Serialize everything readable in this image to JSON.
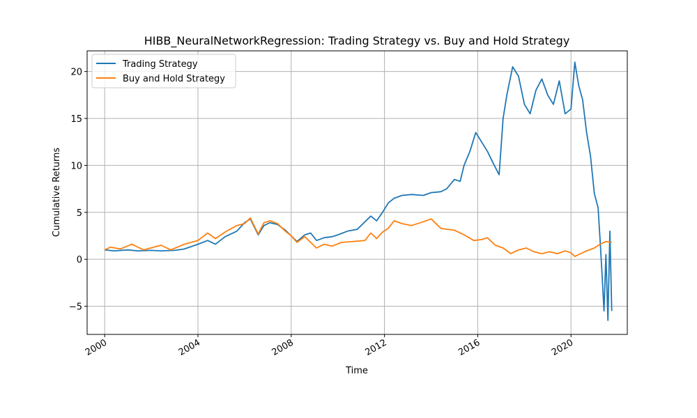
{
  "chart_data": {
    "type": "line",
    "title": "HIBB_NeuralNetworkRegression: Trading Strategy vs. Buy and Hold Strategy",
    "xlabel": "Time",
    "ylabel": "Cumulative Returns",
    "x_ticks": [
      "2000",
      "2004",
      "2008",
      "2012",
      "2016",
      "2020"
    ],
    "y_ticks": [
      "−5",
      "0",
      "5",
      "10",
      "15",
      "20"
    ],
    "xlim": [
      "1999-04-01",
      "2022-06-01"
    ],
    "ylim": [
      -8,
      22.2
    ],
    "grid": true,
    "legend": "top-left",
    "series": [
      {
        "name": "Trading Strategy",
        "color": "#1f77b4",
        "points": [
          [
            "2000-01-01",
            1.0
          ],
          [
            "2000-06-01",
            0.9
          ],
          [
            "2001-01-01",
            1.0
          ],
          [
            "2001-06-01",
            0.9
          ],
          [
            "2002-01-01",
            0.95
          ],
          [
            "2002-06-01",
            0.9
          ],
          [
            "2003-01-01",
            0.95
          ],
          [
            "2003-06-01",
            1.1
          ],
          [
            "2004-01-01",
            1.6
          ],
          [
            "2004-06-01",
            2.0
          ],
          [
            "2004-10-01",
            1.6
          ],
          [
            "2005-03-01",
            2.4
          ],
          [
            "2005-09-01",
            3.0
          ],
          [
            "2006-01-01",
            3.9
          ],
          [
            "2006-04-01",
            4.3
          ],
          [
            "2006-08-01",
            2.6
          ],
          [
            "2006-11-01",
            3.6
          ],
          [
            "2007-02-01",
            3.9
          ],
          [
            "2007-06-01",
            3.7
          ],
          [
            "2007-10-01",
            3.1
          ],
          [
            "2008-01-01",
            2.5
          ],
          [
            "2008-04-01",
            1.9
          ],
          [
            "2008-08-01",
            2.6
          ],
          [
            "2008-11-01",
            2.8
          ],
          [
            "2009-02-01",
            2.0
          ],
          [
            "2009-06-01",
            2.3
          ],
          [
            "2009-10-01",
            2.4
          ],
          [
            "2010-01-01",
            2.6
          ],
          [
            "2010-06-01",
            3.0
          ],
          [
            "2010-11-01",
            3.2
          ],
          [
            "2011-03-01",
            4.0
          ],
          [
            "2011-06-01",
            4.6
          ],
          [
            "2011-09-01",
            4.1
          ],
          [
            "2011-12-01",
            5.0
          ],
          [
            "2012-03-01",
            6.0
          ],
          [
            "2012-06-01",
            6.5
          ],
          [
            "2012-10-01",
            6.8
          ],
          [
            "2013-03-01",
            6.9
          ],
          [
            "2013-09-01",
            6.8
          ],
          [
            "2014-01-01",
            7.1
          ],
          [
            "2014-06-01",
            7.2
          ],
          [
            "2014-09-01",
            7.5
          ],
          [
            "2015-01-01",
            8.5
          ],
          [
            "2015-04-01",
            8.3
          ],
          [
            "2015-06-01",
            10.0
          ],
          [
            "2015-09-01",
            11.5
          ],
          [
            "2015-12-01",
            13.5
          ],
          [
            "2016-03-01",
            12.5
          ],
          [
            "2016-06-01",
            11.5
          ],
          [
            "2016-09-01",
            10.2
          ],
          [
            "2016-12-01",
            9.0
          ],
          [
            "2017-02-01",
            15.0
          ],
          [
            "2017-04-01",
            17.5
          ],
          [
            "2017-07-01",
            20.5
          ],
          [
            "2017-10-01",
            19.5
          ],
          [
            "2018-01-01",
            16.5
          ],
          [
            "2018-04-01",
            15.5
          ],
          [
            "2018-07-01",
            18.0
          ],
          [
            "2018-10-01",
            19.2
          ],
          [
            "2019-01-01",
            17.5
          ],
          [
            "2019-04-01",
            16.5
          ],
          [
            "2019-07-01",
            19.0
          ],
          [
            "2019-10-01",
            15.5
          ],
          [
            "2020-01-01",
            16.0
          ],
          [
            "2020-03-01",
            21.0
          ],
          [
            "2020-05-01",
            18.5
          ],
          [
            "2020-07-01",
            17.0
          ],
          [
            "2020-09-01",
            13.5
          ],
          [
            "2020-11-01",
            11.0
          ],
          [
            "2021-01-01",
            7.0
          ],
          [
            "2021-03-01",
            5.5
          ],
          [
            "2021-04-01",
            2.0
          ],
          [
            "2021-05-01",
            -1.5
          ],
          [
            "2021-06-01",
            -5.5
          ],
          [
            "2021-07-01",
            0.5
          ],
          [
            "2021-08-01",
            -6.5
          ],
          [
            "2021-09-01",
            3.0
          ],
          [
            "2021-10-01",
            -5.5
          ]
        ]
      },
      {
        "name": "Buy and Hold Strategy",
        "color": "#ff7f0e",
        "points": [
          [
            "2000-01-01",
            1.0
          ],
          [
            "2000-04-01",
            1.3
          ],
          [
            "2000-09-01",
            1.1
          ],
          [
            "2001-03-01",
            1.6
          ],
          [
            "2001-09-01",
            1.0
          ],
          [
            "2002-06-01",
            1.5
          ],
          [
            "2002-11-01",
            1.0
          ],
          [
            "2003-06-01",
            1.6
          ],
          [
            "2004-01-01",
            2.0
          ],
          [
            "2004-06-01",
            2.8
          ],
          [
            "2004-10-01",
            2.2
          ],
          [
            "2005-03-01",
            2.9
          ],
          [
            "2005-09-01",
            3.6
          ],
          [
            "2006-01-01",
            3.8
          ],
          [
            "2006-04-01",
            4.4
          ],
          [
            "2006-08-01",
            2.7
          ],
          [
            "2006-11-01",
            3.9
          ],
          [
            "2007-02-01",
            4.1
          ],
          [
            "2007-06-01",
            3.8
          ],
          [
            "2007-10-01",
            3.0
          ],
          [
            "2008-01-01",
            2.5
          ],
          [
            "2008-04-01",
            1.8
          ],
          [
            "2008-08-01",
            2.4
          ],
          [
            "2008-11-01",
            1.8
          ],
          [
            "2009-02-01",
            1.2
          ],
          [
            "2009-06-01",
            1.6
          ],
          [
            "2009-10-01",
            1.4
          ],
          [
            "2010-03-01",
            1.8
          ],
          [
            "2010-09-01",
            1.9
          ],
          [
            "2011-03-01",
            2.0
          ],
          [
            "2011-06-01",
            2.8
          ],
          [
            "2011-09-01",
            2.2
          ],
          [
            "2011-12-01",
            2.9
          ],
          [
            "2012-03-01",
            3.3
          ],
          [
            "2012-06-01",
            4.1
          ],
          [
            "2012-10-01",
            3.8
          ],
          [
            "2013-03-01",
            3.6
          ],
          [
            "2013-09-01",
            4.0
          ],
          [
            "2014-01-01",
            4.3
          ],
          [
            "2014-06-01",
            3.3
          ],
          [
            "2014-09-01",
            3.2
          ],
          [
            "2015-01-01",
            3.1
          ],
          [
            "2015-06-01",
            2.6
          ],
          [
            "2015-11-01",
            2.0
          ],
          [
            "2016-03-01",
            2.1
          ],
          [
            "2016-06-01",
            2.3
          ],
          [
            "2016-10-01",
            1.5
          ],
          [
            "2017-02-01",
            1.2
          ],
          [
            "2017-06-01",
            0.6
          ],
          [
            "2017-10-01",
            1.0
          ],
          [
            "2018-02-01",
            1.2
          ],
          [
            "2018-06-01",
            0.8
          ],
          [
            "2018-10-01",
            0.6
          ],
          [
            "2019-02-01",
            0.8
          ],
          [
            "2019-06-01",
            0.6
          ],
          [
            "2019-10-01",
            0.9
          ],
          [
            "2020-01-01",
            0.7
          ],
          [
            "2020-03-01",
            0.3
          ],
          [
            "2020-06-01",
            0.6
          ],
          [
            "2020-09-01",
            0.9
          ],
          [
            "2021-01-01",
            1.2
          ],
          [
            "2021-04-01",
            1.6
          ],
          [
            "2021-07-01",
            1.9
          ],
          [
            "2021-10-01",
            1.8
          ]
        ]
      }
    ]
  }
}
